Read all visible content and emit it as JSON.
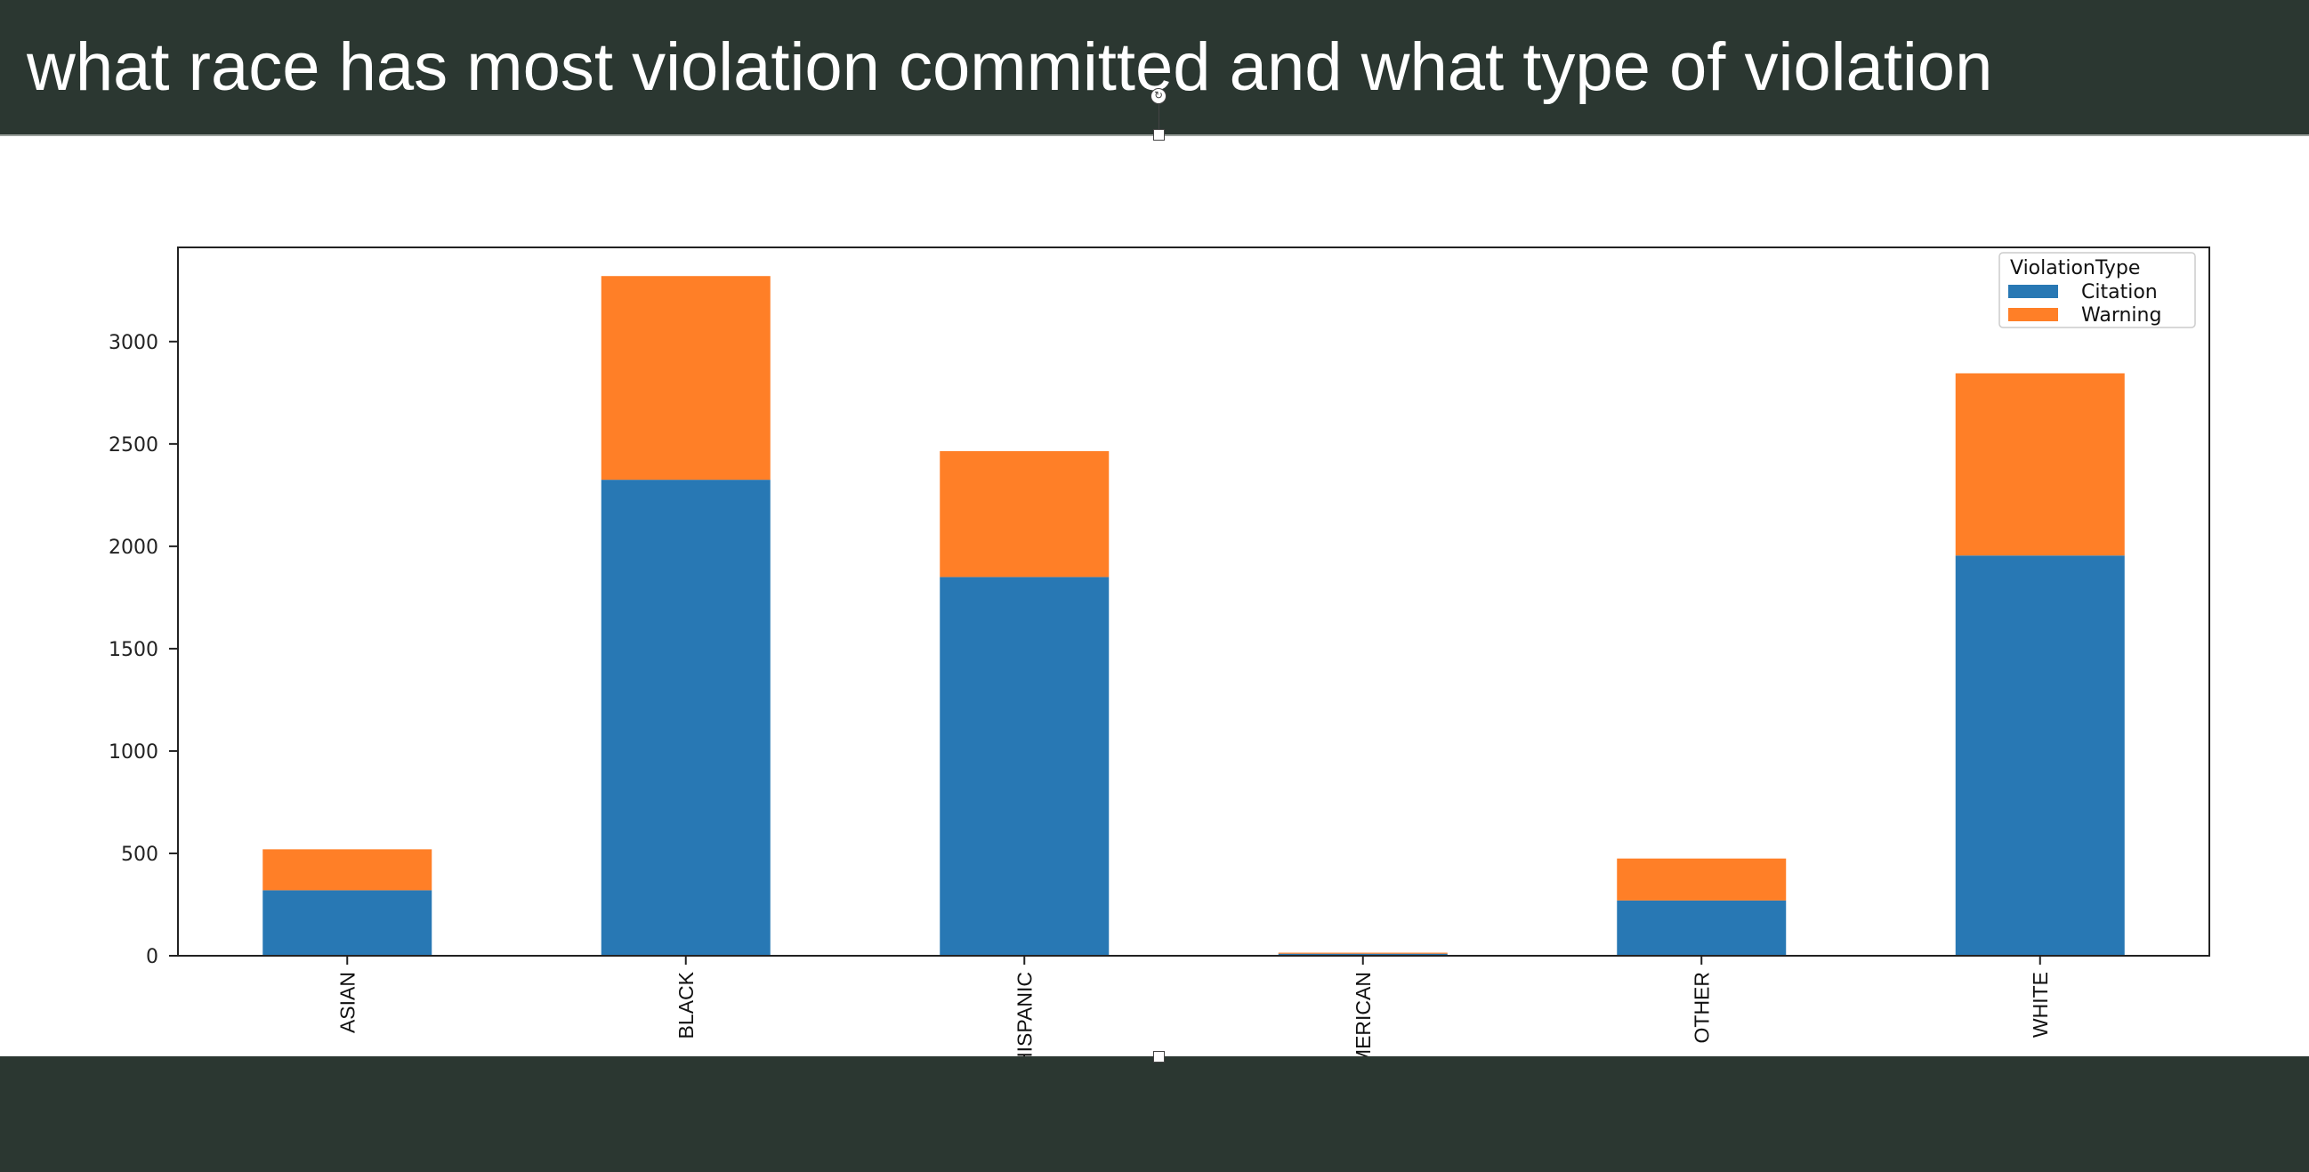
{
  "slide": {
    "title": "what race has most violation committed and what type of violation"
  },
  "chart_data": {
    "type": "bar",
    "stacked": true,
    "categories": [
      "ASIAN",
      "BLACK",
      "HISPANIC",
      "NATIVE AMERICAN",
      "OTHER",
      "WHITE"
    ],
    "series": [
      {
        "name": "Citation",
        "color": "#2878b4",
        "values": [
          320,
          2325,
          1850,
          10,
          270,
          1955
        ]
      },
      {
        "name": "Warning",
        "color": "#ff7f27",
        "values": [
          200,
          995,
          615,
          5,
          205,
          890
        ]
      }
    ],
    "legend": {
      "title": "ViolationType",
      "placement": "top-right"
    },
    "ylim": [
      0,
      3460
    ],
    "yticks": [
      0,
      500,
      1000,
      1500,
      2000,
      2500,
      3000
    ],
    "xlabel": "",
    "ylabel": "",
    "grid": false
  }
}
